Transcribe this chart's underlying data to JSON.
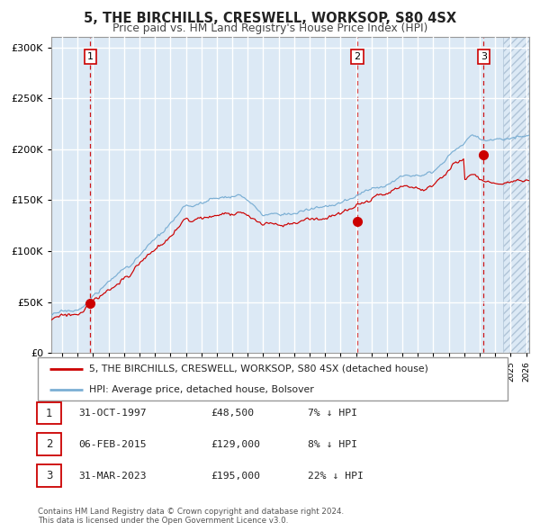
{
  "title": "5, THE BIRCHILLS, CRESWELL, WORKSOP, S80 4SX",
  "subtitle": "Price paid vs. HM Land Registry's House Price Index (HPI)",
  "legend_line1": "5, THE BIRCHILLS, CRESWELL, WORKSOP, S80 4SX (detached house)",
  "legend_line2": "HPI: Average price, detached house, Bolsover",
  "sale_labels": [
    "1",
    "2",
    "3"
  ],
  "sale_dates": [
    "31-OCT-1997",
    "06-FEB-2015",
    "31-MAR-2023"
  ],
  "sale_prices": [
    "£48,500",
    "£129,000",
    "£195,000"
  ],
  "sale_hpi": [
    "7% ↓ HPI",
    "8% ↓ HPI",
    "22% ↓ HPI"
  ],
  "sale_years": [
    1997.83,
    2015.09,
    2023.25
  ],
  "sale_values": [
    48500,
    129000,
    195000
  ],
  "hpi_color": "#7bafd4",
  "price_color": "#cc0000",
  "vline_color": "#cc0000",
  "bg_color": "#dce9f5",
  "grid_color": "#ffffff",
  "hatch_color": "#b0c4d8",
  "ylim": [
    0,
    310000
  ],
  "xlim_start": 1995.3,
  "xlim_end": 2026.2,
  "footer": "Contains HM Land Registry data © Crown copyright and database right 2024.\nThis data is licensed under the Open Government Licence v3.0."
}
